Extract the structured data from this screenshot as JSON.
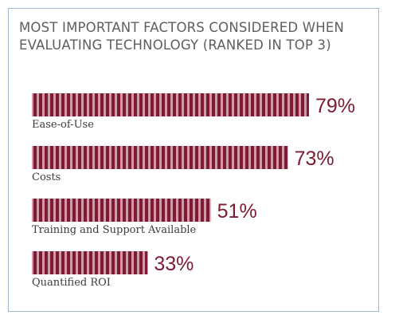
{
  "chart_data": {
    "type": "bar",
    "orientation": "horizontal",
    "title": "MOST IMPORTANT FACTORS CONSIDERED WHEN EVALUATING TECHNOLOGY (RANKED IN TOP 3)",
    "categories": [
      "Ease-of-Use",
      "Costs",
      "Training and Support Available",
      "Quantified ROI"
    ],
    "values": [
      79,
      73,
      51,
      33
    ],
    "value_labels": [
      "79%",
      "73%",
      "51%",
      "33%"
    ],
    "unit": "%",
    "xlim": [
      0,
      100
    ],
    "grid": false,
    "legend": "none",
    "colors": {
      "bar_dark": "#7c1b33",
      "bar_light": "#d19aa8",
      "value_text": "#7c1b33",
      "label_text": "#3b3b3b",
      "frame": "#9fb8d2"
    }
  }
}
